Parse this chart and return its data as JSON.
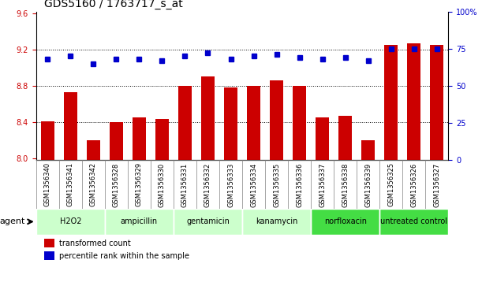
{
  "title": "GDS5160 / 1763717_s_at",
  "samples": [
    "GSM1356340",
    "GSM1356341",
    "GSM1356342",
    "GSM1356328",
    "GSM1356329",
    "GSM1356330",
    "GSM1356331",
    "GSM1356332",
    "GSM1356333",
    "GSM1356334",
    "GSM1356335",
    "GSM1356336",
    "GSM1356337",
    "GSM1356338",
    "GSM1356339",
    "GSM1356325",
    "GSM1356326",
    "GSM1356327"
  ],
  "bar_values": [
    8.41,
    8.73,
    8.2,
    8.4,
    8.45,
    8.43,
    8.8,
    8.9,
    8.78,
    8.8,
    8.86,
    8.8,
    8.45,
    8.47,
    8.2,
    9.25,
    9.27,
    9.25
  ],
  "dot_values": [
    68,
    70,
    65,
    68,
    68,
    67,
    70,
    72,
    68,
    70,
    71,
    69,
    68,
    69,
    67,
    75,
    75,
    75
  ],
  "groups": [
    {
      "label": "H2O2",
      "start": 0,
      "end": 3,
      "color": "#ccffcc"
    },
    {
      "label": "ampicillin",
      "start": 3,
      "end": 6,
      "color": "#ccffcc"
    },
    {
      "label": "gentamicin",
      "start": 6,
      "end": 9,
      "color": "#ccffcc"
    },
    {
      "label": "kanamycin",
      "start": 9,
      "end": 12,
      "color": "#ccffcc"
    },
    {
      "label": "norfloxacin",
      "start": 12,
      "end": 15,
      "color": "#44dd44"
    },
    {
      "label": "untreated control",
      "start": 15,
      "end": 18,
      "color": "#44dd44"
    }
  ],
  "ylim_left": [
    7.98,
    9.62
  ],
  "ylim_right": [
    0,
    100
  ],
  "yticks_left": [
    8.0,
    8.4,
    8.8,
    9.2,
    9.6
  ],
  "yticks_right": [
    0,
    25,
    50,
    75,
    100
  ],
  "bar_color": "#cc0000",
  "dot_color": "#0000cc",
  "background_color": "#ffffff",
  "grid_values": [
    8.4,
    8.8,
    9.2
  ],
  "agent_label": "agent"
}
